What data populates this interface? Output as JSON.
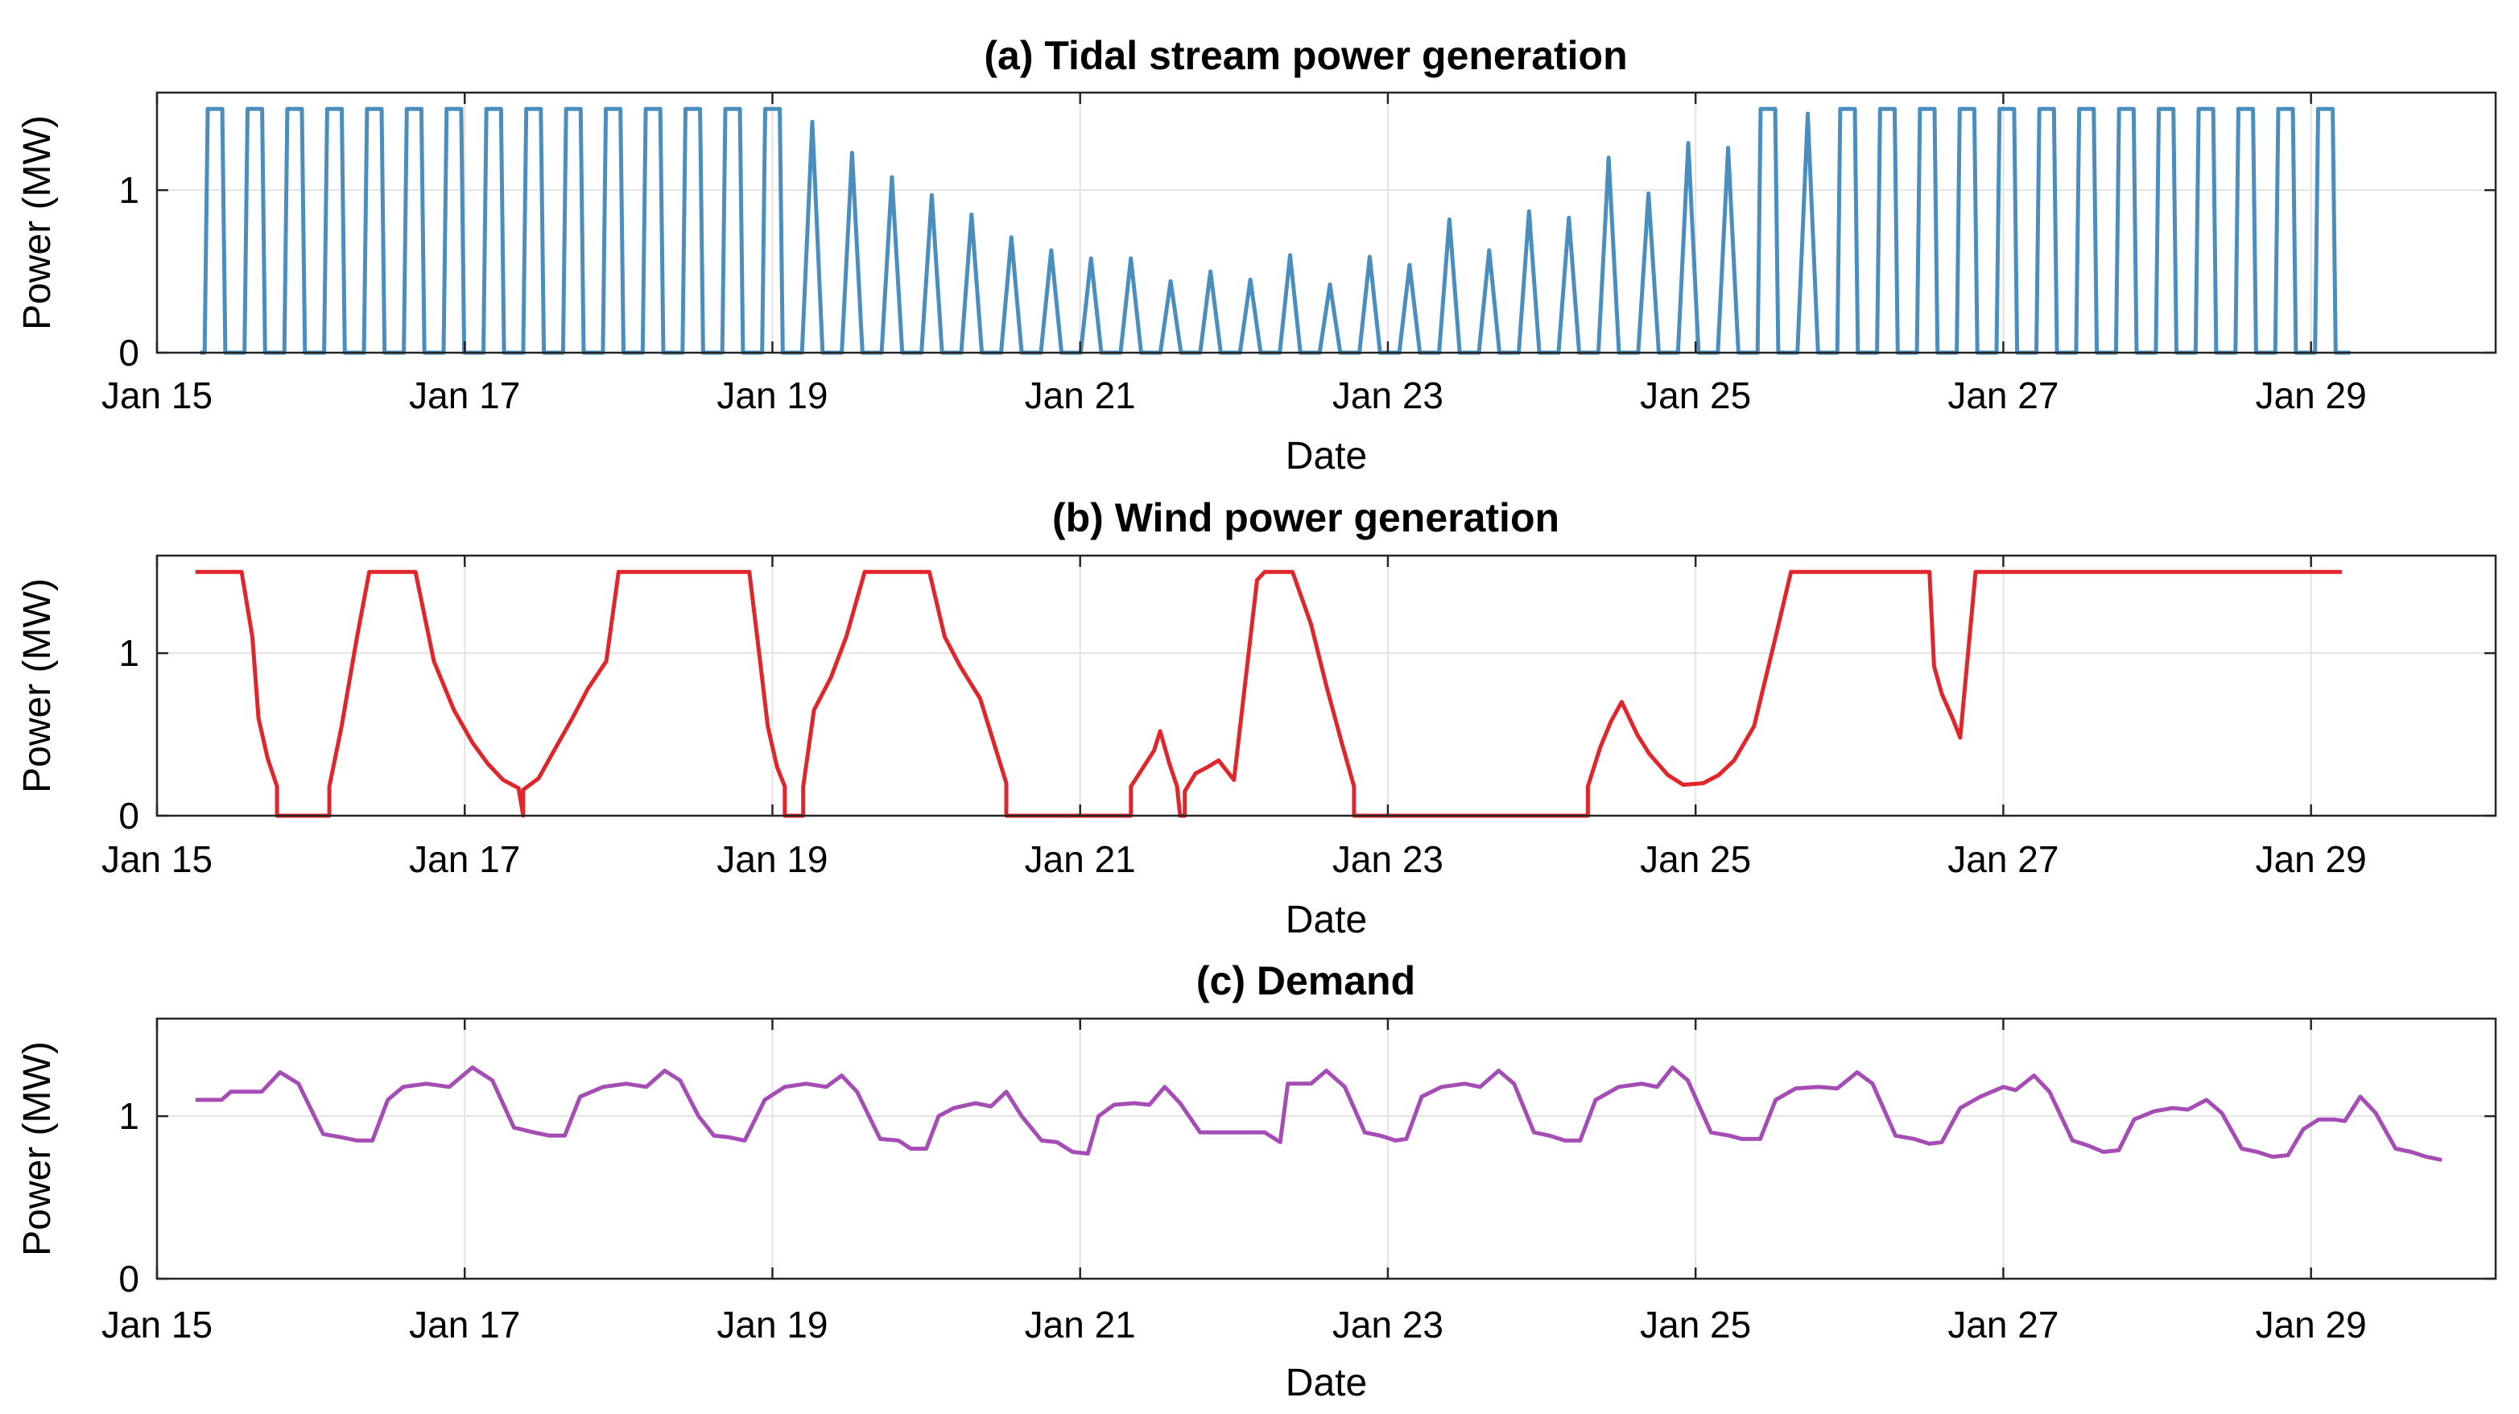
{
  "figure": {
    "background": "#ffffff",
    "grid_color": "#e3e3e3",
    "axis_color": "#262626"
  },
  "chart_data": [
    {
      "type": "line",
      "title": "(a) Tidal stream power generation",
      "xlabel": "Date",
      "ylabel": "Power (MW)",
      "color": "#4a8dbf",
      "grid": true,
      "xlim": [
        15,
        30.2
      ],
      "ylim": [
        0,
        1.6
      ],
      "x_ticks": [
        {
          "value": 15,
          "label": "Jan 15"
        },
        {
          "value": 17,
          "label": "Jan 17"
        },
        {
          "value": 19,
          "label": "Jan 19"
        },
        {
          "value": 21,
          "label": "Jan 21"
        },
        {
          "value": 23,
          "label": "Jan 23"
        },
        {
          "value": 25,
          "label": "Jan 25"
        },
        {
          "value": 27,
          "label": "Jan 27"
        },
        {
          "value": 29,
          "label": "Jan 29"
        }
      ],
      "y_ticks": [
        {
          "value": 0,
          "label": "0"
        },
        {
          "value": 1,
          "label": "1"
        }
      ],
      "tidal": {
        "start": 15.28,
        "period": 0.2588,
        "ramp": 0.03,
        "cap": 1.5,
        "peaks": [
          1.5,
          1.5,
          1.5,
          1.5,
          1.5,
          1.5,
          1.5,
          1.5,
          1.5,
          1.5,
          1.5,
          1.5,
          1.5,
          1.5,
          1.5,
          1.42,
          1.23,
          1.08,
          0.97,
          0.85,
          0.71,
          0.63,
          0.58,
          0.58,
          0.44,
          0.5,
          0.45,
          0.6,
          0.42,
          0.59,
          0.54,
          0.82,
          0.63,
          0.87,
          0.83,
          1.2,
          0.98,
          1.29,
          1.26,
          1.5,
          1.47,
          1.5,
          1.5,
          1.5,
          1.5,
          1.5,
          1.5,
          1.5,
          1.5,
          1.5,
          1.5,
          1.5,
          1.5,
          1.5
        ]
      }
    },
    {
      "type": "line",
      "title": "(b) Wind power generation",
      "xlabel": "Date",
      "ylabel": "Power (MW)",
      "color": "#e0262b",
      "grid": true,
      "xlim": [
        15,
        30.2
      ],
      "ylim": [
        0,
        1.6
      ],
      "x_ticks": [
        {
          "value": 15,
          "label": "Jan 15"
        },
        {
          "value": 17,
          "label": "Jan 17"
        },
        {
          "value": 19,
          "label": "Jan 19"
        },
        {
          "value": 21,
          "label": "Jan 21"
        },
        {
          "value": 23,
          "label": "Jan 23"
        },
        {
          "value": 25,
          "label": "Jan 25"
        },
        {
          "value": 27,
          "label": "Jan 27"
        },
        {
          "value": 29,
          "label": "Jan 29"
        }
      ],
      "y_ticks": [
        {
          "value": 0,
          "label": "0"
        },
        {
          "value": 1,
          "label": "1"
        }
      ],
      "points": [
        [
          15.25,
          1.5
        ],
        [
          15.55,
          1.5
        ],
        [
          15.62,
          1.1
        ],
        [
          15.66,
          0.6
        ],
        [
          15.72,
          0.35
        ],
        [
          15.78,
          0.18
        ],
        [
          15.78,
          0
        ],
        [
          16.12,
          0
        ],
        [
          16.12,
          0.18
        ],
        [
          16.2,
          0.55
        ],
        [
          16.3,
          1.1
        ],
        [
          16.38,
          1.5
        ],
        [
          16.68,
          1.5
        ],
        [
          16.8,
          0.95
        ],
        [
          16.93,
          0.65
        ],
        [
          17.05,
          0.45
        ],
        [
          17.15,
          0.32
        ],
        [
          17.25,
          0.22
        ],
        [
          17.35,
          0.17
        ],
        [
          17.38,
          0
        ],
        [
          17.38,
          0.16
        ],
        [
          17.48,
          0.23
        ],
        [
          17.58,
          0.4
        ],
        [
          17.7,
          0.6
        ],
        [
          17.8,
          0.78
        ],
        [
          17.92,
          0.95
        ],
        [
          18.0,
          1.5
        ],
        [
          18.85,
          1.5
        ],
        [
          18.92,
          0.95
        ],
        [
          18.97,
          0.55
        ],
        [
          19.03,
          0.3
        ],
        [
          19.08,
          0.18
        ],
        [
          19.08,
          0
        ],
        [
          19.2,
          0
        ],
        [
          19.2,
          0.18
        ],
        [
          19.27,
          0.65
        ],
        [
          19.38,
          0.85
        ],
        [
          19.48,
          1.1
        ],
        [
          19.6,
          1.5
        ],
        [
          20.02,
          1.5
        ],
        [
          20.12,
          1.1
        ],
        [
          20.22,
          0.92
        ],
        [
          20.35,
          0.72
        ],
        [
          20.52,
          0.2
        ],
        [
          20.52,
          0
        ],
        [
          21.33,
          0
        ],
        [
          21.33,
          0.18
        ],
        [
          21.48,
          0.4
        ],
        [
          21.52,
          0.52
        ],
        [
          21.58,
          0.32
        ],
        [
          21.63,
          0.18
        ],
        [
          21.65,
          0
        ],
        [
          21.68,
          0
        ],
        [
          21.68,
          0.15
        ],
        [
          21.75,
          0.26
        ],
        [
          21.83,
          0.3
        ],
        [
          21.9,
          0.34
        ],
        [
          22.0,
          0.22
        ],
        [
          22.15,
          1.45
        ],
        [
          22.2,
          1.5
        ],
        [
          22.38,
          1.5
        ],
        [
          22.5,
          1.18
        ],
        [
          22.6,
          0.8
        ],
        [
          22.7,
          0.45
        ],
        [
          22.78,
          0.18
        ],
        [
          22.78,
          0
        ],
        [
          24.3,
          0
        ],
        [
          24.3,
          0.18
        ],
        [
          24.38,
          0.42
        ],
        [
          24.45,
          0.58
        ],
        [
          24.52,
          0.7
        ],
        [
          24.62,
          0.5
        ],
        [
          24.7,
          0.38
        ],
        [
          24.82,
          0.25
        ],
        [
          24.92,
          0.19
        ],
        [
          25.05,
          0.2
        ],
        [
          25.15,
          0.25
        ],
        [
          25.25,
          0.34
        ],
        [
          25.38,
          0.55
        ],
        [
          25.52,
          1.1
        ],
        [
          25.62,
          1.5
        ],
        [
          26.52,
          1.5
        ],
        [
          26.55,
          0.92
        ],
        [
          26.6,
          0.75
        ],
        [
          26.67,
          0.6
        ],
        [
          26.72,
          0.48
        ],
        [
          26.82,
          1.5
        ],
        [
          29.2,
          1.5
        ]
      ]
    },
    {
      "type": "line",
      "title": "(c) Demand",
      "xlabel": "Date",
      "ylabel": "Power (MW)",
      "color": "#a54db5",
      "grid": true,
      "xlim": [
        15,
        30.2
      ],
      "ylim": [
        0,
        1.6
      ],
      "x_ticks": [
        {
          "value": 15,
          "label": "Jan 15"
        },
        {
          "value": 17,
          "label": "Jan 17"
        },
        {
          "value": 19,
          "label": "Jan 19"
        },
        {
          "value": 21,
          "label": "Jan 21"
        },
        {
          "value": 23,
          "label": "Jan 23"
        },
        {
          "value": 25,
          "label": "Jan 25"
        },
        {
          "value": 27,
          "label": "Jan 27"
        },
        {
          "value": 29,
          "label": "Jan 29"
        }
      ],
      "y_ticks": [
        {
          "value": 0,
          "label": "0"
        },
        {
          "value": 1,
          "label": "1"
        }
      ],
      "points": [
        [
          15.25,
          1.1
        ],
        [
          15.42,
          1.1
        ],
        [
          15.48,
          1.15
        ],
        [
          15.68,
          1.15
        ],
        [
          15.8,
          1.27
        ],
        [
          15.92,
          1.2
        ],
        [
          16.08,
          0.89
        ],
        [
          16.2,
          0.87
        ],
        [
          16.3,
          0.85
        ],
        [
          16.4,
          0.85
        ],
        [
          16.5,
          1.1
        ],
        [
          16.6,
          1.18
        ],
        [
          16.75,
          1.2
        ],
        [
          16.9,
          1.18
        ],
        [
          17.05,
          1.3
        ],
        [
          17.18,
          1.22
        ],
        [
          17.32,
          0.93
        ],
        [
          17.45,
          0.9
        ],
        [
          17.55,
          0.88
        ],
        [
          17.65,
          0.88
        ],
        [
          17.75,
          1.12
        ],
        [
          17.9,
          1.18
        ],
        [
          18.05,
          1.2
        ],
        [
          18.18,
          1.18
        ],
        [
          18.3,
          1.28
        ],
        [
          18.4,
          1.22
        ],
        [
          18.52,
          1.0
        ],
        [
          18.62,
          0.88
        ],
        [
          18.72,
          0.87
        ],
        [
          18.82,
          0.85
        ],
        [
          18.95,
          1.1
        ],
        [
          19.08,
          1.18
        ],
        [
          19.22,
          1.2
        ],
        [
          19.35,
          1.18
        ],
        [
          19.45,
          1.25
        ],
        [
          19.55,
          1.15
        ],
        [
          19.7,
          0.86
        ],
        [
          19.82,
          0.85
        ],
        [
          19.9,
          0.8
        ],
        [
          20.0,
          0.8
        ],
        [
          20.08,
          1.0
        ],
        [
          20.18,
          1.05
        ],
        [
          20.32,
          1.08
        ],
        [
          20.42,
          1.06
        ],
        [
          20.52,
          1.15
        ],
        [
          20.62,
          1.0
        ],
        [
          20.75,
          0.85
        ],
        [
          20.85,
          0.84
        ],
        [
          20.95,
          0.78
        ],
        [
          21.05,
          0.77
        ],
        [
          21.12,
          1.0
        ],
        [
          21.22,
          1.07
        ],
        [
          21.35,
          1.08
        ],
        [
          21.45,
          1.07
        ],
        [
          21.55,
          1.18
        ],
        [
          21.65,
          1.08
        ],
        [
          21.78,
          0.9
        ],
        [
          21.9,
          0.9
        ],
        [
          22.2,
          0.9
        ],
        [
          22.3,
          0.84
        ],
        [
          22.35,
          1.2
        ],
        [
          22.5,
          1.2
        ],
        [
          22.6,
          1.28
        ],
        [
          22.72,
          1.18
        ],
        [
          22.85,
          0.9
        ],
        [
          22.95,
          0.88
        ],
        [
          23.05,
          0.85
        ],
        [
          23.12,
          0.86
        ],
        [
          23.22,
          1.12
        ],
        [
          23.35,
          1.18
        ],
        [
          23.5,
          1.2
        ],
        [
          23.6,
          1.18
        ],
        [
          23.72,
          1.28
        ],
        [
          23.82,
          1.2
        ],
        [
          23.95,
          0.9
        ],
        [
          24.05,
          0.88
        ],
        [
          24.15,
          0.85
        ],
        [
          24.25,
          0.85
        ],
        [
          24.35,
          1.1
        ],
        [
          24.5,
          1.18
        ],
        [
          24.65,
          1.2
        ],
        [
          24.75,
          1.18
        ],
        [
          24.85,
          1.3
        ],
        [
          24.95,
          1.22
        ],
        [
          25.1,
          0.9
        ],
        [
          25.22,
          0.88
        ],
        [
          25.3,
          0.86
        ],
        [
          25.42,
          0.86
        ],
        [
          25.52,
          1.1
        ],
        [
          25.65,
          1.17
        ],
        [
          25.8,
          1.18
        ],
        [
          25.92,
          1.17
        ],
        [
          26.05,
          1.27
        ],
        [
          26.15,
          1.2
        ],
        [
          26.3,
          0.88
        ],
        [
          26.42,
          0.86
        ],
        [
          26.52,
          0.83
        ],
        [
          26.6,
          0.84
        ],
        [
          26.72,
          1.05
        ],
        [
          26.85,
          1.12
        ],
        [
          27.0,
          1.18
        ],
        [
          27.08,
          1.16
        ],
        [
          27.2,
          1.25
        ],
        [
          27.3,
          1.15
        ],
        [
          27.45,
          0.85
        ],
        [
          27.55,
          0.82
        ],
        [
          27.65,
          0.78
        ],
        [
          27.75,
          0.79
        ],
        [
          27.85,
          0.98
        ],
        [
          27.98,
          1.03
        ],
        [
          28.1,
          1.05
        ],
        [
          28.2,
          1.04
        ],
        [
          28.32,
          1.1
        ],
        [
          28.42,
          1.02
        ],
        [
          28.55,
          0.8
        ],
        [
          28.65,
          0.78
        ],
        [
          28.75,
          0.75
        ],
        [
          28.85,
          0.76
        ],
        [
          28.95,
          0.92
        ],
        [
          29.05,
          0.98
        ],
        [
          29.15,
          0.98
        ],
        [
          29.22,
          0.97
        ],
        [
          29.32,
          1.12
        ],
        [
          29.42,
          1.02
        ],
        [
          29.55,
          0.8
        ],
        [
          29.65,
          0.78
        ],
        [
          29.75,
          0.75
        ],
        [
          29.85,
          0.73
        ]
      ]
    }
  ]
}
